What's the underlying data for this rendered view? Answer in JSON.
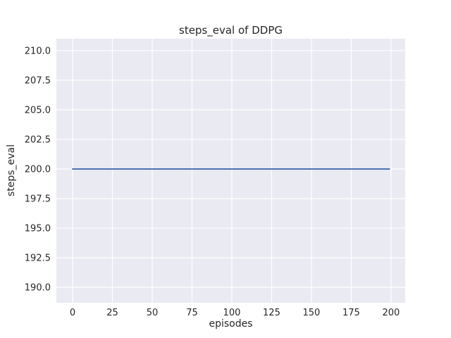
{
  "chart_data": {
    "type": "line",
    "title": "steps_eval of DDPG",
    "xlabel": "episodes",
    "ylabel": "steps_eval",
    "grid": true,
    "legend_position": "none",
    "x_ticks": {
      "values": [
        0,
        25,
        50,
        75,
        100,
        125,
        150,
        175,
        200
      ],
      "labels": [
        "0",
        "25",
        "50",
        "75",
        "100",
        "125",
        "150",
        "175",
        "200"
      ]
    },
    "y_ticks": {
      "values": [
        190.0,
        192.5,
        195.0,
        197.5,
        200.0,
        202.5,
        205.0,
        207.5,
        210.0
      ],
      "labels": [
        "190.0",
        "192.5",
        "195.0",
        "197.5",
        "200.0",
        "202.5",
        "205.0",
        "207.5",
        "210.0"
      ]
    },
    "xlim": [
      -10.2,
      208.9
    ],
    "ylim": [
      188.7,
      211.0
    ],
    "series": [
      {
        "name": "steps_eval",
        "color": "#4c72b0",
        "x": [
          0,
          199
        ],
        "y": [
          200,
          200
        ]
      }
    ],
    "colors": {
      "figure_background": "#ffffff",
      "plot_background": "#eaeaf2",
      "grid": "#ffffff",
      "line": "#4c72b0",
      "text": "#262626"
    }
  }
}
